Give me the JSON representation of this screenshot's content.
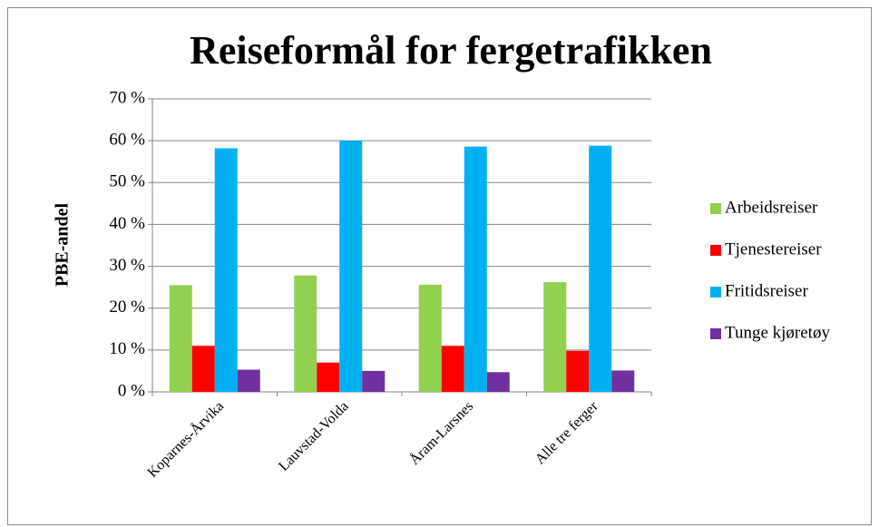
{
  "chart_data": {
    "type": "bar",
    "title": "Reiseformål for fergetrafikken",
    "y_label": "PBE-andel",
    "categories": [
      "Koparnes-Årvika",
      "Lauvstad-Volda",
      "Åram-Larsnes",
      "Alle tre ferger"
    ],
    "series": [
      {
        "name": "Arbeidsreiser",
        "color": "#92d050",
        "values": [
          25.5,
          27.8,
          25.6,
          26.2
        ]
      },
      {
        "name": "Tjenestereiser",
        "color": "#ff0000",
        "values": [
          11,
          7,
          11,
          9.8
        ]
      },
      {
        "name": "Fritidsreiser",
        "color": "#00b0f0",
        "values": [
          58.2,
          60,
          58.6,
          58.8
        ]
      },
      {
        "name": "Tunge kjøretøy",
        "color": "#7030a0",
        "values": [
          5.3,
          5,
          4.7,
          5.1
        ]
      }
    ],
    "ylim": [
      0,
      70
    ],
    "yticks": [
      {
        "value": 0,
        "label": "0 %"
      },
      {
        "value": 10,
        "label": "10 %"
      },
      {
        "value": 20,
        "label": "20 %"
      },
      {
        "value": 30,
        "label": "30 %"
      },
      {
        "value": 40,
        "label": "40 %"
      },
      {
        "value": 50,
        "label": "50 %"
      },
      {
        "value": 60,
        "label": "60 %"
      },
      {
        "value": 70,
        "label": "70 %"
      }
    ],
    "grid": true,
    "legend": "right"
  }
}
